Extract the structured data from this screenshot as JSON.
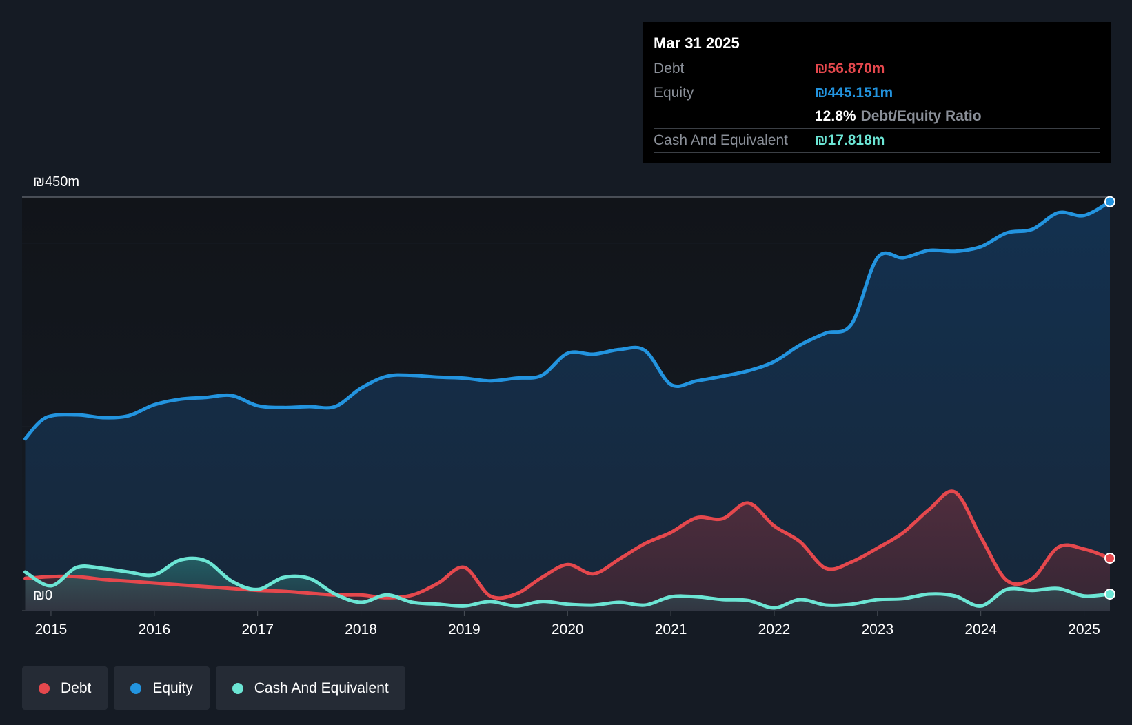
{
  "tooltip": {
    "date": "Mar 31 2025",
    "debt_label": "Debt",
    "debt_value": "₪56.870m",
    "equity_label": "Equity",
    "equity_value": "₪445.151m",
    "ratio_value": "12.8%",
    "ratio_label": "Debt/Equity Ratio",
    "cash_label": "Cash And Equivalent",
    "cash_value": "₪17.818m"
  },
  "legend": [
    {
      "label": "Debt",
      "color": "#e5484d"
    },
    {
      "label": "Equity",
      "color": "#2394df"
    },
    {
      "label": "Cash And Equivalent",
      "color": "#6ce5d4"
    }
  ],
  "chart_data": {
    "type": "area",
    "title": "",
    "xlabel": "",
    "ylabel": "",
    "y_top_label": "₪450m",
    "y_bottom_label": "₪0",
    "ylim": [
      0,
      450
    ],
    "xlim": [
      2014.72,
      2025.25
    ],
    "x_ticks": [
      "2015",
      "2016",
      "2017",
      "2018",
      "2019",
      "2020",
      "2021",
      "2022",
      "2023",
      "2024",
      "2025"
    ],
    "grid": true,
    "legend_position": "bottom-left",
    "series": [
      {
        "name": "Equity",
        "color": "#2394df",
        "x": [
          2014.75,
          2014.95,
          2015.25,
          2015.5,
          2015.75,
          2016.0,
          2016.25,
          2016.5,
          2016.75,
          2017.0,
          2017.25,
          2017.5,
          2017.75,
          2018.0,
          2018.25,
          2018.5,
          2018.75,
          2019.0,
          2019.25,
          2019.5,
          2019.75,
          2020.0,
          2020.25,
          2020.5,
          2020.75,
          2021.0,
          2021.25,
          2021.5,
          2021.75,
          2022.0,
          2022.25,
          2022.5,
          2022.75,
          2023.0,
          2023.25,
          2023.5,
          2023.75,
          2024.0,
          2024.25,
          2024.5,
          2024.75,
          2025.0,
          2025.25
        ],
        "values": [
          187,
          210,
          213,
          210,
          212,
          224,
          230,
          232,
          234,
          223,
          221,
          222,
          222,
          242,
          255,
          256,
          254,
          253,
          250,
          253,
          256,
          280,
          279,
          284,
          283,
          246,
          250,
          255,
          261,
          271,
          289,
          302,
          312,
          384,
          384,
          392,
          391,
          396,
          411,
          415,
          433,
          430,
          445
        ]
      },
      {
        "name": "Debt",
        "color": "#e5484d",
        "x": [
          2014.75,
          2015.0,
          2015.25,
          2015.5,
          2015.75,
          2016.0,
          2016.25,
          2016.5,
          2016.75,
          2017.0,
          2017.25,
          2017.5,
          2017.75,
          2018.0,
          2018.25,
          2018.5,
          2018.75,
          2019.0,
          2019.25,
          2019.5,
          2019.75,
          2020.0,
          2020.25,
          2020.5,
          2020.75,
          2021.0,
          2021.25,
          2021.5,
          2021.75,
          2022.0,
          2022.25,
          2022.5,
          2022.75,
          2023.0,
          2023.25,
          2023.5,
          2023.75,
          2024.0,
          2024.25,
          2024.5,
          2024.75,
          2025.0,
          2025.25
        ],
        "values": [
          35,
          37,
          37,
          34,
          32,
          30,
          28,
          26,
          24,
          22,
          21,
          19,
          17,
          17,
          14,
          17,
          30,
          47,
          16,
          18,
          36,
          50,
          40,
          56,
          73,
          85,
          101,
          100,
          117,
          92,
          75,
          46,
          53,
          68,
          85,
          110,
          129,
          80,
          33,
          35,
          69,
          67,
          57
        ]
      },
      {
        "name": "Cash And Equivalent",
        "color": "#6ce5d4",
        "x": [
          2014.75,
          2015.0,
          2015.25,
          2015.5,
          2015.75,
          2016.0,
          2016.25,
          2016.5,
          2016.75,
          2017.0,
          2017.25,
          2017.5,
          2017.75,
          2018.0,
          2018.25,
          2018.5,
          2018.75,
          2019.0,
          2019.25,
          2019.5,
          2019.75,
          2020.0,
          2020.25,
          2020.5,
          2020.75,
          2021.0,
          2021.25,
          2021.5,
          2021.75,
          2022.0,
          2022.25,
          2022.5,
          2022.75,
          2023.0,
          2023.25,
          2023.5,
          2023.75,
          2024.0,
          2024.25,
          2024.5,
          2024.75,
          2025.0,
          2025.25
        ],
        "values": [
          42,
          27,
          47,
          46,
          42,
          39,
          55,
          54,
          32,
          23,
          36,
          35,
          18,
          9,
          17,
          9,
          7,
          5,
          10,
          5,
          10,
          7,
          6,
          9,
          6,
          15,
          15,
          12,
          11,
          3,
          12,
          6,
          7,
          12,
          13,
          18,
          16,
          5,
          23,
          22,
          24,
          16,
          18
        ]
      }
    ]
  }
}
